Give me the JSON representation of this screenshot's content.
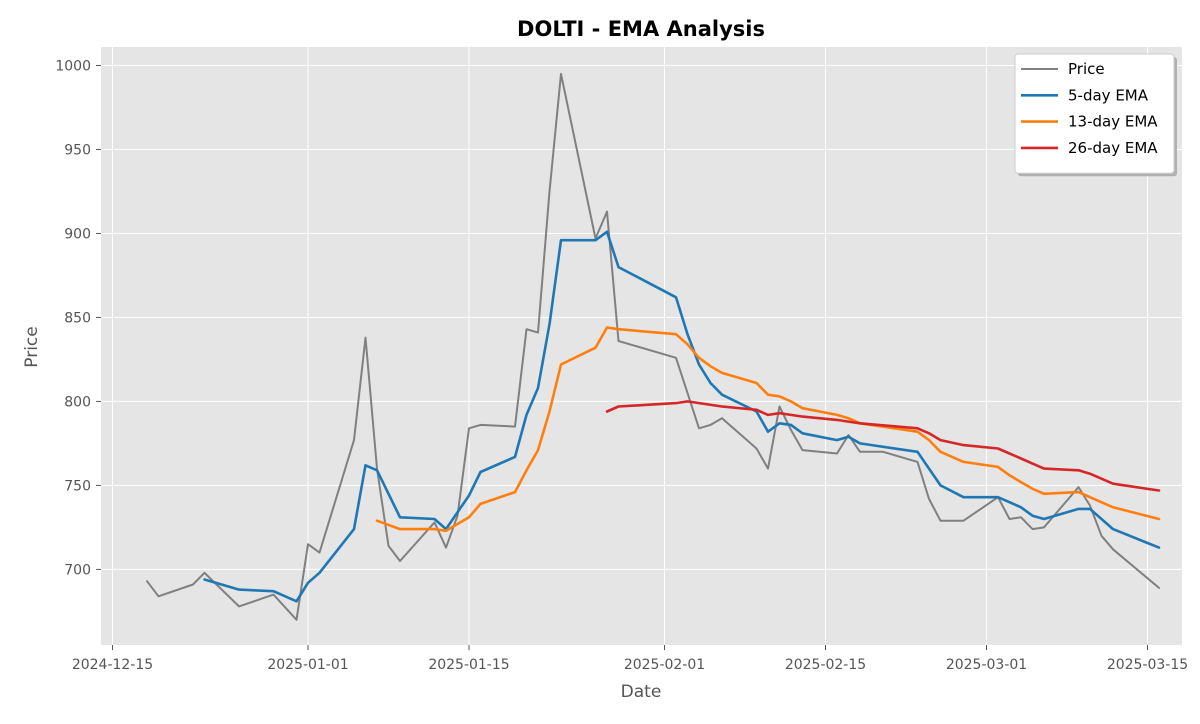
{
  "chart_data": {
    "type": "line",
    "title": "DOLTI - EMA Analysis",
    "xlabel": "Date",
    "ylabel": "Price",
    "xlim": [
      "2024-12-14",
      "2025-03-18"
    ],
    "ylim": [
      655,
      1011
    ],
    "x_ticks": [
      "2024-12-15",
      "2025-01-01",
      "2025-01-15",
      "2025-02-01",
      "2025-02-15",
      "2025-03-01",
      "2025-03-15"
    ],
    "y_ticks": [
      700,
      750,
      800,
      850,
      900,
      950,
      1000
    ],
    "grid": true,
    "legend_position": "top-right",
    "series": [
      {
        "name": "Price",
        "color": "#808080",
        "x": [
          "2024-12-18",
          "2024-12-19",
          "2024-12-22",
          "2024-12-23",
          "2024-12-26",
          "2024-12-29",
          "2024-12-31",
          "2025-01-01",
          "2025-01-02",
          "2025-01-05",
          "2025-01-06",
          "2025-01-07",
          "2025-01-08",
          "2025-01-09",
          "2025-01-12",
          "2025-01-13",
          "2025-01-14",
          "2025-01-15",
          "2025-01-16",
          "2025-01-19",
          "2025-01-20",
          "2025-01-21",
          "2025-01-22",
          "2025-01-23",
          "2025-01-26",
          "2025-01-27",
          "2025-01-28",
          "2025-02-02",
          "2025-02-03",
          "2025-02-04",
          "2025-02-05",
          "2025-02-06",
          "2025-02-09",
          "2025-02-10",
          "2025-02-11",
          "2025-02-12",
          "2025-02-13",
          "2025-02-16",
          "2025-02-17",
          "2025-02-18",
          "2025-02-20",
          "2025-02-23",
          "2025-02-24",
          "2025-02-25",
          "2025-02-27",
          "2025-03-02",
          "2025-03-03",
          "2025-03-04",
          "2025-03-05",
          "2025-03-06",
          "2025-03-09",
          "2025-03-10",
          "2025-03-11",
          "2025-03-12",
          "2025-03-16"
        ],
        "values": [
          693,
          684,
          691,
          698,
          678,
          685,
          670,
          715,
          710,
          777,
          838,
          760,
          714,
          705,
          728,
          713,
          732,
          784,
          786,
          785,
          843,
          841,
          925,
          995,
          897,
          913,
          836,
          826,
          805,
          784,
          786,
          790,
          772,
          760,
          797,
          783,
          771,
          769,
          780,
          770,
          770,
          764,
          742,
          729,
          729,
          743,
          730,
          731,
          724,
          725,
          749,
          738,
          720,
          712,
          689
        ]
      },
      {
        "name": "5-day EMA",
        "color": "#1f77b4",
        "x": [
          "2024-12-23",
          "2024-12-26",
          "2024-12-29",
          "2024-12-31",
          "2025-01-01",
          "2025-01-02",
          "2025-01-05",
          "2025-01-06",
          "2025-01-07",
          "2025-01-09",
          "2025-01-12",
          "2025-01-13",
          "2025-01-15",
          "2025-01-16",
          "2025-01-19",
          "2025-01-20",
          "2025-01-21",
          "2025-01-22",
          "2025-01-23",
          "2025-01-26",
          "2025-01-27",
          "2025-01-28",
          "2025-02-02",
          "2025-02-03",
          "2025-02-04",
          "2025-02-05",
          "2025-02-06",
          "2025-02-09",
          "2025-02-10",
          "2025-02-11",
          "2025-02-12",
          "2025-02-13",
          "2025-02-16",
          "2025-02-17",
          "2025-02-18",
          "2025-02-23",
          "2025-02-24",
          "2025-02-25",
          "2025-02-27",
          "2025-03-02",
          "2025-03-03",
          "2025-03-04",
          "2025-03-05",
          "2025-03-06",
          "2025-03-09",
          "2025-03-10",
          "2025-03-12",
          "2025-03-16"
        ],
        "values": [
          694,
          688,
          687,
          681,
          692,
          698,
          724,
          762,
          759,
          731,
          730,
          724,
          744,
          758,
          767,
          792,
          808,
          846,
          896,
          896,
          901,
          880,
          862,
          840,
          822,
          811,
          804,
          794,
          782,
          787,
          786,
          781,
          777,
          779,
          775,
          770,
          760,
          750,
          743,
          743,
          740,
          737,
          732,
          730,
          736,
          736,
          724,
          713
        ]
      },
      {
        "name": "13-day EMA",
        "color": "#ff7f0e",
        "x": [
          "2025-01-07",
          "2025-01-09",
          "2025-01-12",
          "2025-01-13",
          "2025-01-15",
          "2025-01-16",
          "2025-01-19",
          "2025-01-20",
          "2025-01-21",
          "2025-01-22",
          "2025-01-23",
          "2025-01-26",
          "2025-01-27",
          "2025-01-28",
          "2025-02-02",
          "2025-02-03",
          "2025-02-04",
          "2025-02-05",
          "2025-02-06",
          "2025-02-09",
          "2025-02-10",
          "2025-02-11",
          "2025-02-12",
          "2025-02-13",
          "2025-02-16",
          "2025-02-17",
          "2025-02-18",
          "2025-02-23",
          "2025-02-24",
          "2025-02-25",
          "2025-02-27",
          "2025-03-02",
          "2025-03-03",
          "2025-03-04",
          "2025-03-05",
          "2025-03-06",
          "2025-03-09",
          "2025-03-10",
          "2025-03-12",
          "2025-03-16"
        ],
        "values": [
          729,
          724,
          724,
          723,
          731,
          739,
          746,
          759,
          771,
          794,
          822,
          832,
          844,
          843,
          840,
          834,
          826,
          821,
          817,
          811,
          804,
          803,
          800,
          796,
          792,
          790,
          787,
          782,
          777,
          770,
          764,
          761,
          756,
          752,
          748,
          745,
          746,
          743,
          737,
          730
        ]
      },
      {
        "name": "26-day EMA",
        "color": "#d62728",
        "x": [
          "2025-01-27",
          "2025-01-28",
          "2025-02-02",
          "2025-02-03",
          "2025-02-06",
          "2025-02-09",
          "2025-02-10",
          "2025-02-11",
          "2025-02-12",
          "2025-02-13",
          "2025-02-16",
          "2025-02-17",
          "2025-02-18",
          "2025-02-23",
          "2025-02-24",
          "2025-02-25",
          "2025-02-27",
          "2025-03-02",
          "2025-03-03",
          "2025-03-04",
          "2025-03-05",
          "2025-03-06",
          "2025-03-09",
          "2025-03-10",
          "2025-03-12",
          "2025-03-16"
        ],
        "values": [
          794,
          797,
          799,
          800,
          797,
          795,
          792,
          793,
          792,
          791,
          789,
          788,
          787,
          784,
          781,
          777,
          774,
          772,
          769,
          766,
          763,
          760,
          759,
          757,
          751,
          747
        ]
      }
    ]
  }
}
